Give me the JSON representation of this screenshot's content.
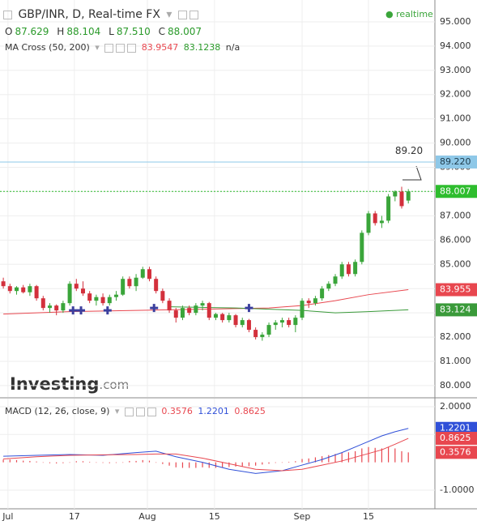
{
  "header": {
    "title": "GBP/INR, D, Real-time FX",
    "status": "realtime",
    "ohlc_letters": [
      "O",
      "H",
      "L",
      "C"
    ],
    "ohlc_values": [
      87.629,
      88.104,
      {
        "value": 87.51,
        "label": "87.510"
      },
      88.007
    ],
    "indicator": "MA Cross (50, 200)",
    "indicator_values": [
      83.9547,
      83.1238,
      "n/a"
    ],
    "logo": [
      "Investing",
      ".com"
    ],
    "macd_title": "MACD (12, 26, close, 9)",
    "macd_values": [
      0.3576,
      1.2201,
      0.8625
    ]
  },
  "chart_data": [
    {
      "type": "candlestick",
      "up_color": "#3aa53a",
      "down_color": "#d3303c",
      "xlim": [
        -0.5,
        65
      ],
      "ylim": [
        79.53,
        95.9
      ],
      "xticks": [
        {
          "value": 0.7,
          "label": "Jul"
        },
        {
          "value": 10.7,
          "label": "17"
        },
        {
          "value": 21.7,
          "label": "Aug"
        },
        {
          "value": 31.8,
          "label": "15"
        },
        {
          "value": 45,
          "label": "Sep"
        },
        {
          "value": 55,
          "label": "15"
        }
      ],
      "yticks": [
        {
          "value": 80,
          "label": "80.000"
        },
        {
          "value": 81,
          "label": "81.000"
        },
        {
          "value": 82,
          "label": "82.000"
        },
        {
          "value": 83,
          "label": "83.000"
        },
        {
          "value": 84,
          "label": "84.000"
        },
        {
          "value": 85,
          "label": "85.000"
        },
        {
          "value": 86,
          "label": "86.000"
        },
        {
          "value": 87,
          "label": "87.000"
        },
        {
          "value": 88,
          "label": "88.000"
        },
        {
          "value": 89,
          "label": "89.000"
        },
        {
          "value": 90,
          "label": "90.000"
        },
        {
          "value": 91,
          "label": "91.000"
        },
        {
          "value": 92,
          "label": "92.000"
        },
        {
          "value": 93,
          "label": "93.000"
        },
        {
          "value": 94,
          "label": "94.000"
        },
        {
          "value": 95,
          "label": "95.000"
        }
      ],
      "candles": [
        [
          84.3,
          84.45,
          84.0,
          84.1
        ],
        [
          84.1,
          84.2,
          83.8,
          83.9
        ],
        [
          83.9,
          84.1,
          83.75,
          84.05
        ],
        [
          84.05,
          84.15,
          83.8,
          83.85
        ],
        [
          83.85,
          84.2,
          83.7,
          84.1
        ],
        [
          84.1,
          84.15,
          83.5,
          83.6
        ],
        [
          83.6,
          83.7,
          83.1,
          83.2
        ],
        [
          83.2,
          83.4,
          83.0,
          83.3
        ],
        [
          83.3,
          83.35,
          82.9,
          83.1
        ],
        [
          83.1,
          83.5,
          83.0,
          83.4
        ],
        [
          83.4,
          84.3,
          83.3,
          84.2
        ],
        [
          84.2,
          84.4,
          83.9,
          84.0
        ],
        [
          84.0,
          84.3,
          83.7,
          83.8
        ],
        [
          83.8,
          83.9,
          83.4,
          83.5
        ],
        [
          83.5,
          83.75,
          83.3,
          83.65
        ],
        [
          83.65,
          83.8,
          83.3,
          83.4
        ],
        [
          83.4,
          83.75,
          83.3,
          83.65
        ],
        [
          83.65,
          83.9,
          83.5,
          83.75
        ],
        [
          83.75,
          84.5,
          83.7,
          84.4
        ],
        [
          84.4,
          84.5,
          84.0,
          84.1
        ],
        [
          84.1,
          84.6,
          83.9,
          84.45
        ],
        [
          84.45,
          84.9,
          84.4,
          84.8
        ],
        [
          84.8,
          84.9,
          84.3,
          84.4
        ],
        [
          84.4,
          84.5,
          83.8,
          83.9
        ],
        [
          83.9,
          84.0,
          83.4,
          83.5
        ],
        [
          83.5,
          83.6,
          83.0,
          83.1
        ],
        [
          83.1,
          83.2,
          82.6,
          82.8
        ],
        [
          82.8,
          83.3,
          82.7,
          83.2
        ],
        [
          83.2,
          83.3,
          82.9,
          83.0
        ],
        [
          83.0,
          83.4,
          82.9,
          83.3
        ],
        [
          83.3,
          83.5,
          83.1,
          83.4
        ],
        [
          83.4,
          83.45,
          82.7,
          82.8
        ],
        [
          82.8,
          83.0,
          82.7,
          82.95
        ],
        [
          82.95,
          83.0,
          82.6,
          82.7
        ],
        [
          82.7,
          83.0,
          82.6,
          82.9
        ],
        [
          82.9,
          82.95,
          82.4,
          82.5
        ],
        [
          82.5,
          82.8,
          82.4,
          82.7
        ],
        [
          82.7,
          82.75,
          82.2,
          82.3
        ],
        [
          82.3,
          82.4,
          81.9,
          82.0
        ],
        [
          82.0,
          82.2,
          81.85,
          82.1
        ],
        [
          82.1,
          82.6,
          82.0,
          82.5
        ],
        [
          82.5,
          82.7,
          82.3,
          82.6
        ],
        [
          82.6,
          82.8,
          82.4,
          82.7
        ],
        [
          82.7,
          82.8,
          82.4,
          82.5
        ],
        [
          82.5,
          82.9,
          82.2,
          82.8
        ],
        [
          82.8,
          83.6,
          82.7,
          83.5
        ],
        [
          83.5,
          83.6,
          83.2,
          83.4
        ],
        [
          83.4,
          83.7,
          83.3,
          83.6
        ],
        [
          83.6,
          84.1,
          83.5,
          84.0
        ],
        [
          84.0,
          84.3,
          83.9,
          84.2
        ],
        [
          84.2,
          84.6,
          84.1,
          84.5
        ],
        [
          84.5,
          85.1,
          84.4,
          85.0
        ],
        [
          85.0,
          85.1,
          84.5,
          84.6
        ],
        [
          84.6,
          85.2,
          84.5,
          85.1
        ],
        [
          85.1,
          86.4,
          85.0,
          86.3
        ],
        [
          86.3,
          87.2,
          86.2,
          87.1
        ],
        [
          87.1,
          87.2,
          86.6,
          86.7
        ],
        [
          86.7,
          87.0,
          86.5,
          86.8
        ],
        [
          86.8,
          87.9,
          86.7,
          87.8
        ],
        [
          87.8,
          88.05,
          87.6,
          88.0
        ],
        [
          88.0,
          88.2,
          87.3,
          87.4
        ],
        [
          87.629,
          88.104,
          87.51,
          88.007
        ]
      ],
      "ma_lines": [
        {
          "color": "#e8474f",
          "x": [
            0,
            10,
            20,
            30,
            40,
            45,
            50,
            55,
            61
          ],
          "values": [
            82.95,
            83.05,
            83.1,
            83.15,
            83.2,
            83.3,
            83.5,
            83.75,
            83.955
          ]
        },
        {
          "color": "#3a9a3a",
          "x": [
            25,
            35,
            45,
            50,
            55,
            61
          ],
          "values": [
            83.25,
            83.2,
            83.1,
            83.0,
            83.05,
            83.124
          ]
        }
      ],
      "signals": {
        "color": "#3b3f9e",
        "x": [
          10.5,
          11.7,
          15.7,
          22.7,
          37
        ],
        "values": [
          83.1,
          83.1,
          83.1,
          83.2,
          83.2
        ]
      },
      "levels": [
        {
          "value": 89.22,
          "label": "89.220",
          "color": "#8ec8e8",
          "text_color": "#1e3a4a",
          "style": "solid"
        },
        {
          "value": 88.007,
          "label": "88.007",
          "color": "#2ebd2e",
          "text_color": "#ffffff",
          "style": "dotted"
        }
      ],
      "price_labels": [
        {
          "value": 83.955,
          "label": "83.955",
          "color": "#e8474f"
        },
        {
          "value": 83.124,
          "label": "83.124",
          "color": "#3a9a3a"
        }
      ],
      "annotation": {
        "value": 89.2,
        "label": "89.20"
      }
    },
    {
      "type": "macd",
      "xlim": [
        -0.5,
        65
      ],
      "ylim": [
        -1.67,
        2.29
      ],
      "yticks": [
        {
          "value": 2,
          "label": "2.0000"
        },
        {
          "value": 1,
          "label": "1.0000"
        },
        {
          "value": -1,
          "label": "-1.0000"
        }
      ],
      "hist_color": "#e8474f",
      "histogram": [
        0.1,
        0.1,
        0.08,
        0.06,
        0.05,
        0.03,
        0.0,
        -0.03,
        -0.04,
        -0.03,
        0.0,
        0.04,
        0.04,
        0.02,
        0.0,
        -0.02,
        -0.03,
        -0.02,
        0.0,
        0.05,
        0.05,
        0.08,
        0.06,
        0.0,
        -0.06,
        -0.12,
        -0.18,
        -0.2,
        -0.2,
        -0.2,
        -0.18,
        -0.2,
        -0.2,
        -0.18,
        -0.17,
        -0.15,
        -0.14,
        -0.14,
        -0.12,
        -0.08,
        -0.05,
        -0.02,
        0.0,
        0.02,
        0.04,
        0.12,
        0.14,
        0.18,
        0.22,
        0.26,
        0.3,
        0.35,
        0.36,
        0.4,
        0.5,
        0.55,
        0.52,
        0.5,
        0.55,
        0.5,
        0.4,
        0.3576
      ],
      "lines": [
        {
          "color": "#3050d8",
          "x": [
            0,
            5,
            10,
            15,
            20,
            23,
            26,
            30,
            34,
            38,
            42,
            45,
            48,
            51,
            54,
            57,
            59,
            61
          ],
          "values": [
            0.22,
            0.25,
            0.28,
            0.25,
            0.35,
            0.4,
            0.2,
            0.0,
            -0.25,
            -0.4,
            -0.3,
            -0.1,
            0.1,
            0.35,
            0.65,
            0.95,
            1.1,
            1.2201
          ]
        },
        {
          "color": "#e8474f",
          "x": [
            0,
            5,
            10,
            15,
            20,
            23,
            26,
            30,
            34,
            38,
            42,
            45,
            48,
            51,
            54,
            57,
            59,
            61
          ],
          "values": [
            0.12,
            0.2,
            0.25,
            0.27,
            0.28,
            0.3,
            0.3,
            0.15,
            -0.05,
            -0.25,
            -0.3,
            -0.25,
            -0.1,
            0.05,
            0.25,
            0.45,
            0.65,
            0.8625
          ]
        }
      ],
      "value_boxes": [
        {
          "value": 1.2201,
          "color": "#3050d8"
        },
        {
          "value": 0.8625,
          "color": "#e8474f"
        },
        {
          "value": 0.3576,
          "color": "#e8474f"
        }
      ]
    }
  ]
}
